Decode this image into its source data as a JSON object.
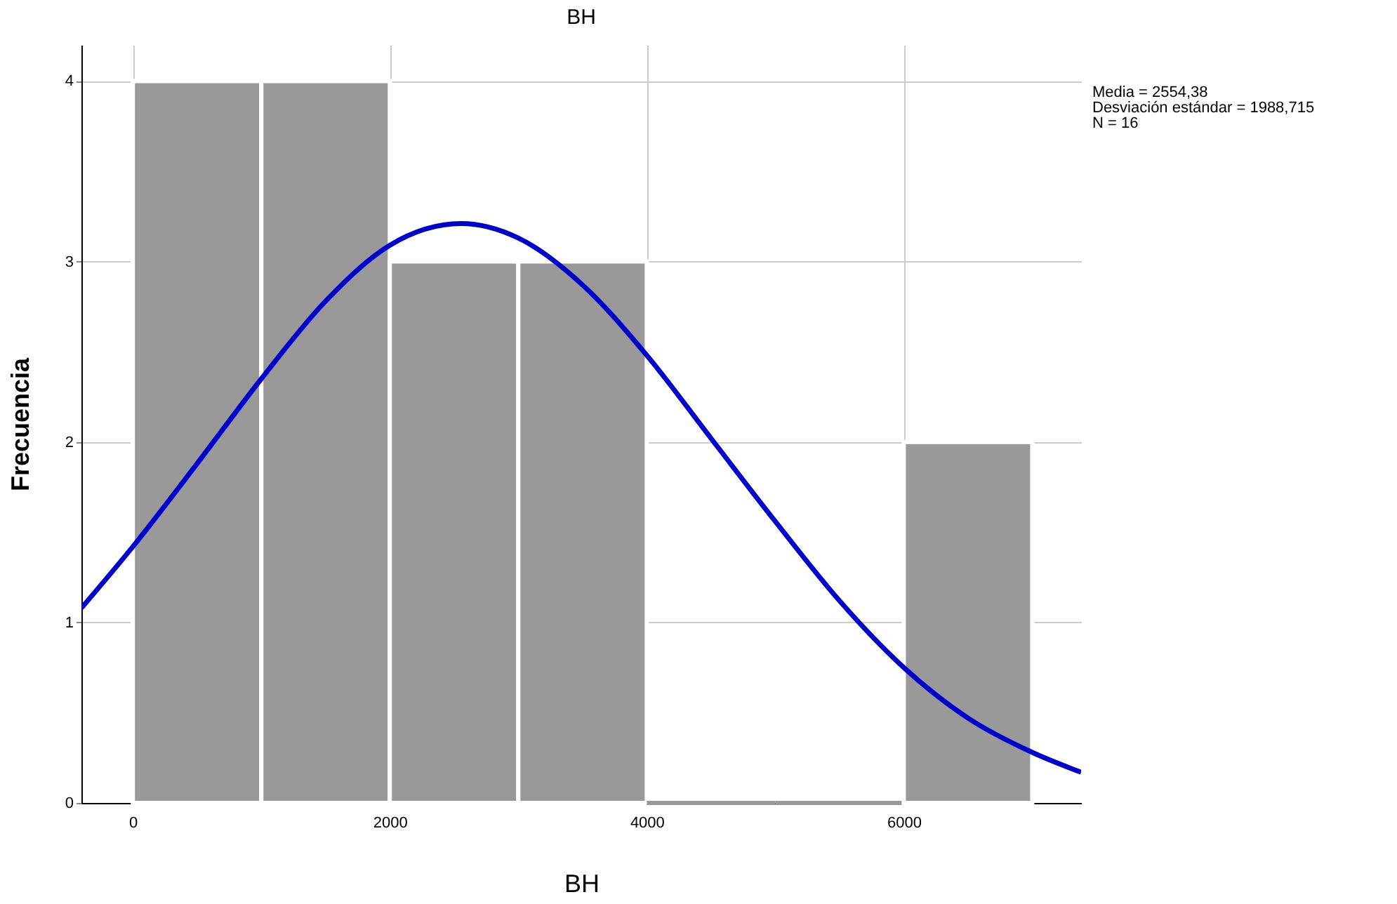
{
  "chart_data": {
    "type": "histogram",
    "title": "BH",
    "xlabel": "BH",
    "ylabel": "Frecuencia",
    "bins": [
      0,
      1000,
      2000,
      3000,
      4000,
      5000,
      6000,
      7000
    ],
    "values": [
      4,
      4,
      3,
      3,
      0,
      0,
      2
    ],
    "color": "#999999",
    "xlim": [
      -400,
      7380
    ],
    "xticks": [
      0,
      2000,
      4000,
      6000
    ],
    "ylim": [
      0,
      4.2
    ],
    "yticks": [
      0,
      1,
      2,
      3,
      4
    ],
    "grid": true,
    "series": [
      {
        "type": "line",
        "color": "#0000cc",
        "x": [
          -400,
          0,
          500,
          1000,
          1500,
          2000,
          2554,
          3000,
          3500,
          4000,
          4500,
          5000,
          5500,
          6000,
          6500,
          7000,
          7380
        ],
        "values": [
          1.08,
          1.42,
          1.88,
          2.35,
          2.78,
          3.09,
          3.21,
          3.13,
          2.87,
          2.48,
          2.02,
          1.56,
          1.12,
          0.75,
          0.47,
          0.28,
          0.17
        ]
      }
    ],
    "annotations": [
      "Media = 2554,38",
      "Desviación estándar = 1988,715",
      "N = 16"
    ]
  }
}
